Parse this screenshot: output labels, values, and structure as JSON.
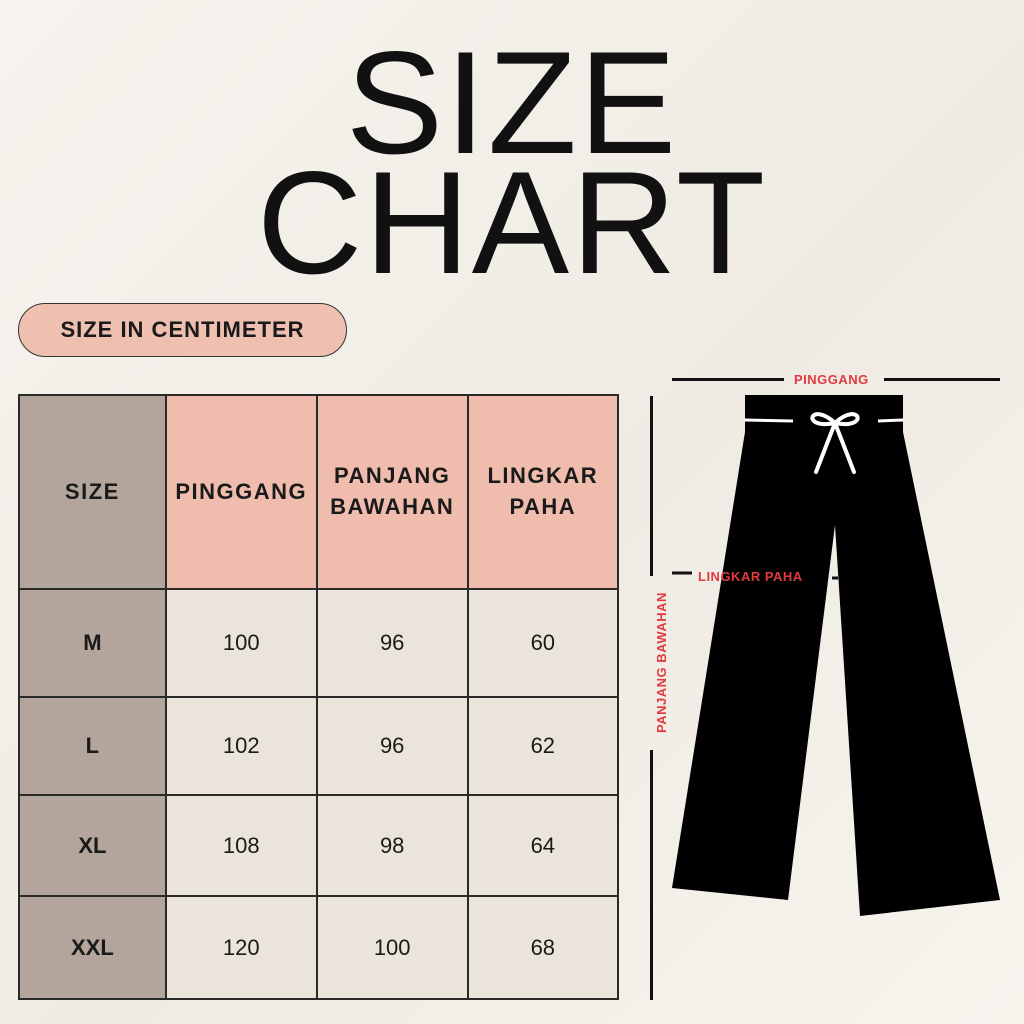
{
  "title": {
    "line1": "SIZE",
    "line2": "CHART"
  },
  "unit_badge": "SIZE IN CENTIMETER",
  "chart_data": {
    "type": "table",
    "columns": [
      "SIZE",
      "PINGGANG",
      "PANJANG BAWAHAN",
      "LINGKAR PAHA"
    ],
    "rows": [
      {
        "size": "M",
        "pinggang": "100",
        "panjang": "96",
        "lingkar": "60"
      },
      {
        "size": "L",
        "pinggang": "102",
        "panjang": "96",
        "lingkar": "62"
      },
      {
        "size": "XL",
        "pinggang": "108",
        "panjang": "98",
        "lingkar": "64"
      },
      {
        "size": "XXL",
        "pinggang": "120",
        "panjang": "100",
        "lingkar": "68"
      }
    ]
  },
  "diagram": {
    "waist_label": "PINGGANG",
    "thigh_label": "LINGKAR PAHA",
    "length_label": "PANJANG BAWAHAN",
    "label_color": "#e33a3f"
  },
  "colors": {
    "header": "#efbcae",
    "size_column": "#b3a59b",
    "cell": "#ebe4da"
  }
}
